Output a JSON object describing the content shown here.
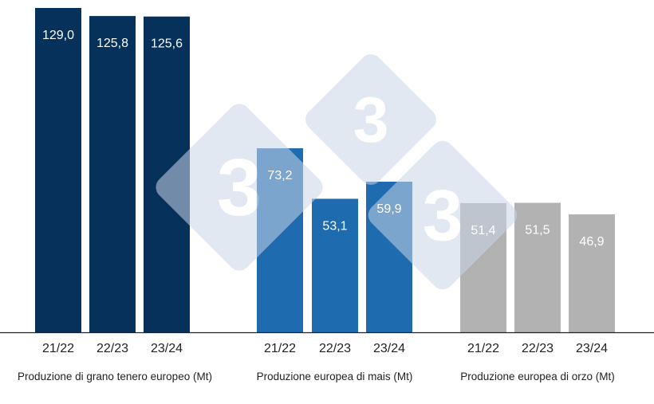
{
  "chart_data": [
    {
      "type": "bar",
      "title": "Produzione di grano tenero europeo (Mt)",
      "categories": [
        "21/22",
        "22/23",
        "23/24"
      ],
      "values": [
        129.0,
        125.8,
        125.6
      ],
      "value_labels": [
        "129,0",
        "125,8",
        "125,6"
      ],
      "color": "#06315a"
    },
    {
      "type": "bar",
      "title": "Produzione europea di mais (Mt)",
      "categories": [
        "21/22",
        "22/23",
        "23/24"
      ],
      "values": [
        73.2,
        53.1,
        59.9
      ],
      "value_labels": [
        "73,2",
        "53,1",
        "59,9"
      ],
      "color": "#1f6bb0"
    },
    {
      "type": "bar",
      "title": "Produzione europea di orzo (Mt)",
      "categories": [
        "21/22",
        "22/23",
        "23/24"
      ],
      "values": [
        51.4,
        51.5,
        46.9
      ],
      "value_labels": [
        "51,4",
        "51,5",
        "46,9"
      ],
      "color": "#b2b2b2"
    }
  ],
  "shared": {
    "ylim": [
      0,
      129
    ],
    "grid": false,
    "legend": "none",
    "axis_color": "#222222"
  },
  "watermark": {
    "text": "3",
    "color": "#c9d6e8"
  }
}
